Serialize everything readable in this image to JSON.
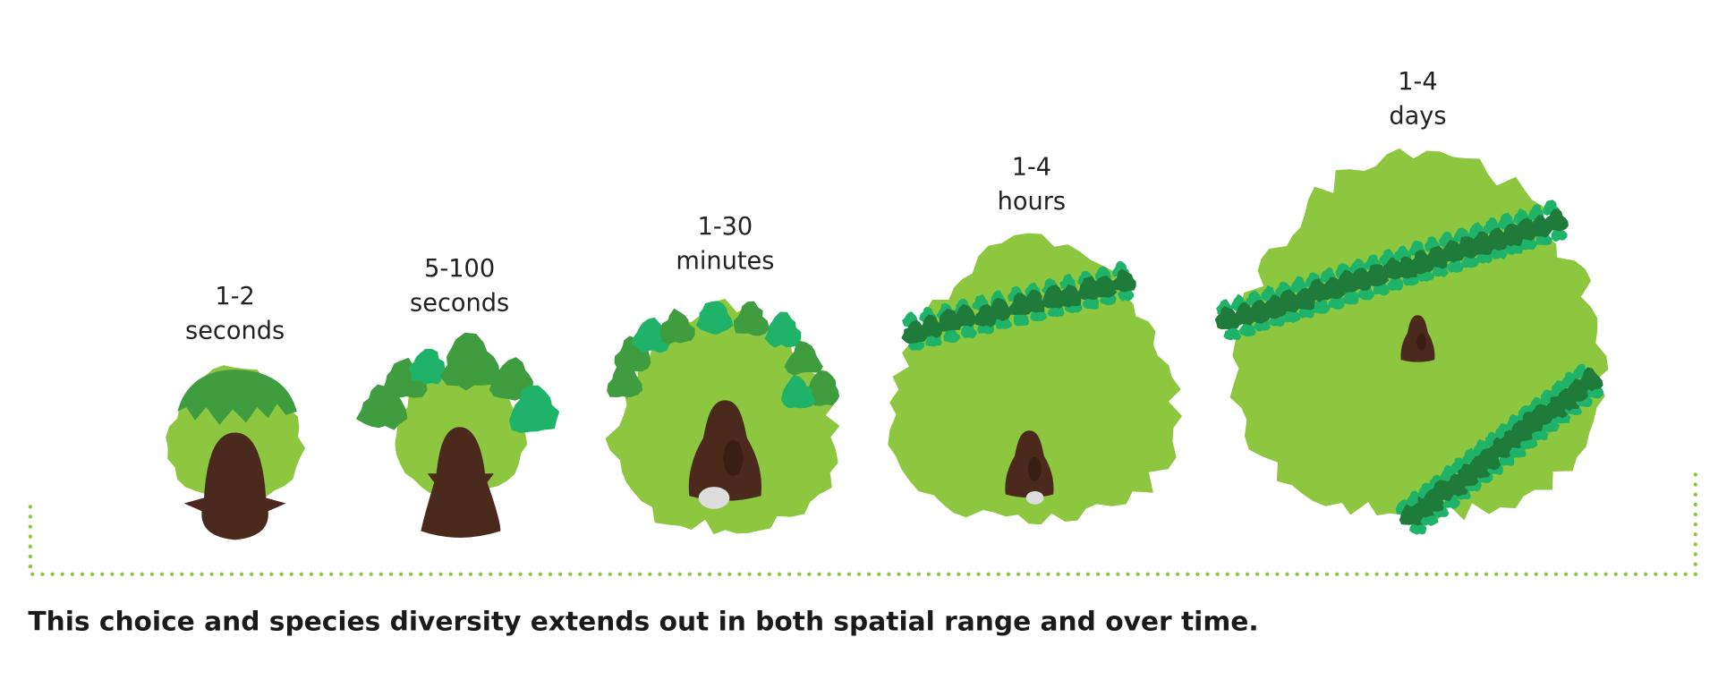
{
  "panels": [
    {
      "label": [
        "1-2",
        "seconds"
      ]
    },
    {
      "label": [
        "5-100",
        "seconds"
      ]
    },
    {
      "label": [
        "1-30",
        "minutes"
      ]
    },
    {
      "label": [
        "1-4",
        "hours"
      ]
    },
    {
      "label": [
        "1-4",
        "days"
      ]
    }
  ],
  "caption": "This choice and species diversity extends out in both spatial range and over time."
}
